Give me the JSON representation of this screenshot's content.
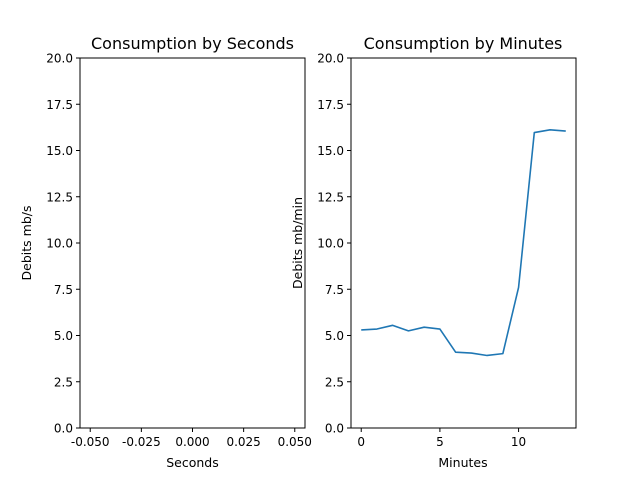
{
  "chart_data": [
    {
      "type": "line",
      "title": "Consumption by Seconds",
      "xlabel": "Seconds",
      "ylabel": "Debits mb/s",
      "xlim": [
        -0.055,
        0.055
      ],
      "ylim": [
        0,
        20
      ],
      "xticks": [
        "-0.050",
        "-0.025",
        "0.000",
        "0.025",
        "0.050"
      ],
      "yticks": [
        "0.0",
        "2.5",
        "5.0",
        "7.5",
        "10.0",
        "12.5",
        "15.0",
        "17.5",
        "20.0"
      ],
      "grid": false,
      "series": [
        {
          "x": [],
          "y": [],
          "color": "#1f77b4"
        }
      ]
    },
    {
      "type": "line",
      "title": "Consumption by Minutes",
      "xlabel": "Minutes",
      "ylabel": "Debits mb/min",
      "xlim": [
        -0.65,
        13.65
      ],
      "ylim": [
        0,
        20
      ],
      "xticks": [
        "0",
        "5",
        "10"
      ],
      "yticks": [
        "0.0",
        "2.5",
        "5.0",
        "7.5",
        "10.0",
        "12.5",
        "15.0",
        "17.5",
        "20.0"
      ],
      "grid": false,
      "series": [
        {
          "x": [
            0,
            1,
            2,
            3,
            4,
            5,
            6,
            7,
            8,
            9,
            10,
            11,
            12,
            13
          ],
          "y": [
            5.3,
            5.35,
            5.55,
            5.25,
            5.45,
            5.35,
            4.1,
            4.05,
            3.92,
            4.02,
            7.6,
            15.97,
            16.12,
            16.05
          ],
          "color": "#1f77b4"
        }
      ]
    }
  ]
}
